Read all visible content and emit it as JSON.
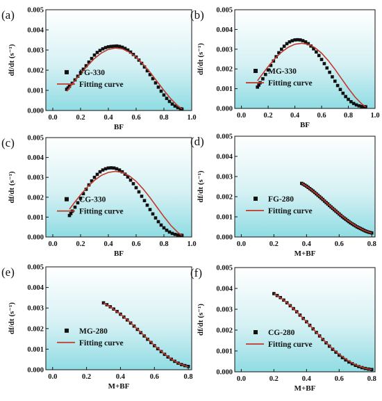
{
  "chart_data": [
    {
      "panel": "(a)",
      "type": "scatter",
      "xlabel": "BF",
      "ylabel": "df/dt (s⁻¹)",
      "xlim": [
        -0.05,
        1.0
      ],
      "ylim": [
        0,
        0.005
      ],
      "xticks": [
        "0.0",
        "0.2",
        "0.4",
        "0.6",
        "0.8",
        "1.0"
      ],
      "yticks": [
        "0.000",
        "0.001",
        "0.002",
        "0.003",
        "0.004",
        "0.005"
      ],
      "legend_location": "center-left",
      "colors": {
        "data": "#111111",
        "fit": "#c0392b"
      },
      "series": [
        {
          "name": "FG-330",
          "kind": "markers",
          "x": [
            0.1,
            0.11,
            0.12,
            0.14,
            0.16,
            0.18,
            0.2,
            0.22,
            0.24,
            0.26,
            0.28,
            0.3,
            0.32,
            0.34,
            0.36,
            0.38,
            0.4,
            0.42,
            0.44,
            0.46,
            0.48,
            0.5,
            0.52,
            0.54,
            0.56,
            0.58,
            0.6,
            0.62,
            0.64,
            0.66,
            0.68,
            0.7,
            0.72,
            0.74,
            0.76,
            0.78,
            0.8,
            0.82,
            0.84,
            0.86,
            0.88,
            0.9,
            0.92,
            0.93
          ],
          "y": [
            0.00105,
            0.00112,
            0.0012,
            0.00135,
            0.00152,
            0.0017,
            0.00188,
            0.00205,
            0.00222,
            0.0024,
            0.00258,
            0.00275,
            0.00288,
            0.00298,
            0.00306,
            0.00312,
            0.00316,
            0.00318,
            0.00319,
            0.0032,
            0.00318,
            0.00314,
            0.00308,
            0.003,
            0.0029,
            0.00278,
            0.00265,
            0.0025,
            0.00234,
            0.00216,
            0.00197,
            0.00178,
            0.00158,
            0.00137,
            0.00116,
            0.00096,
            0.00077,
            0.0006,
            0.00045,
            0.00032,
            0.00022,
            0.00014,
            9e-05,
            7e-05
          ]
        },
        {
          "name": "Fitting curve",
          "kind": "line",
          "x": [
            0.1,
            0.15,
            0.2,
            0.25,
            0.3,
            0.35,
            0.4,
            0.45,
            0.5,
            0.55,
            0.6,
            0.65,
            0.7,
            0.75,
            0.8,
            0.85,
            0.9,
            0.93
          ],
          "y": [
            0.00095,
            0.0014,
            0.00182,
            0.00222,
            0.00258,
            0.00285,
            0.00303,
            0.0031,
            0.00306,
            0.0029,
            0.00265,
            0.0023,
            0.0019,
            0.00145,
            0.001,
            0.00058,
            0.00023,
            8e-05
          ]
        }
      ]
    },
    {
      "panel": "(b)",
      "type": "scatter",
      "xlabel": "BF",
      "ylabel": "df/dt (s⁻¹)",
      "xlim": [
        -0.05,
        1.0
      ],
      "ylim": [
        0,
        0.005
      ],
      "xticks": [
        "0.0",
        "0.2",
        "0.4",
        "0.6",
        "0.8",
        "1.0"
      ],
      "yticks": [
        "0.000",
        "0.001",
        "0.002",
        "0.003",
        "0.004",
        "0.005"
      ],
      "legend_location": "center-left",
      "colors": {
        "data": "#111111",
        "fit": "#c0392b"
      },
      "series": [
        {
          "name": "MG-330",
          "kind": "markers",
          "x": [
            0.12,
            0.13,
            0.14,
            0.16,
            0.18,
            0.2,
            0.22,
            0.24,
            0.26,
            0.28,
            0.3,
            0.32,
            0.34,
            0.36,
            0.38,
            0.4,
            0.42,
            0.44,
            0.46,
            0.48,
            0.5,
            0.52,
            0.54,
            0.56,
            0.58,
            0.6,
            0.62,
            0.64,
            0.66,
            0.68,
            0.7,
            0.72,
            0.74,
            0.76,
            0.78,
            0.8,
            0.82,
            0.84,
            0.86,
            0.88,
            0.9,
            0.92,
            0.93
          ],
          "y": [
            0.00108,
            0.00118,
            0.0013,
            0.0015,
            0.00172,
            0.00195,
            0.00218,
            0.0024,
            0.00262,
            0.00282,
            0.003,
            0.00315,
            0.00328,
            0.00337,
            0.00343,
            0.00347,
            0.00348,
            0.00347,
            0.00343,
            0.00337,
            0.00328,
            0.00316,
            0.00302,
            0.00286,
            0.00268,
            0.00248,
            0.00227,
            0.00205,
            0.00183,
            0.0016,
            0.00138,
            0.00116,
            0.00096,
            0.00077,
            0.0006,
            0.00046,
            0.00034,
            0.00025,
            0.00018,
            0.00013,
            0.0001,
            9e-05,
            8e-05
          ]
        },
        {
          "name": "Fitting curve",
          "kind": "line",
          "x": [
            0.12,
            0.15,
            0.2,
            0.25,
            0.3,
            0.35,
            0.4,
            0.45,
            0.5,
            0.55,
            0.6,
            0.65,
            0.7,
            0.75,
            0.8,
            0.85,
            0.9,
            0.93
          ],
          "y": [
            0.0014,
            0.00168,
            0.00212,
            0.00252,
            0.00285,
            0.0031,
            0.00325,
            0.0033,
            0.00325,
            0.00308,
            0.0028,
            0.00242,
            0.00198,
            0.0015,
            0.00102,
            0.00058,
            0.00023,
            8e-05
          ]
        }
      ]
    },
    {
      "panel": "(c)",
      "type": "scatter",
      "xlabel": "BF",
      "ylabel": "df/dt (s⁻¹)",
      "xlim": [
        -0.05,
        1.0
      ],
      "ylim": [
        0,
        0.005
      ],
      "xticks": [
        "0.0",
        "0.2",
        "0.4",
        "0.6",
        "0.8",
        "1.0"
      ],
      "yticks": [
        "0.000",
        "0.001",
        "0.002",
        "0.003",
        "0.004",
        "0.005"
      ],
      "legend_location": "center-left",
      "colors": {
        "data": "#111111",
        "fit": "#c0392b"
      },
      "series": [
        {
          "name": "CG-330",
          "kind": "markers",
          "x": [
            0.12,
            0.13,
            0.14,
            0.16,
            0.18,
            0.2,
            0.22,
            0.24,
            0.26,
            0.28,
            0.3,
            0.32,
            0.34,
            0.36,
            0.38,
            0.4,
            0.42,
            0.44,
            0.46,
            0.48,
            0.5,
            0.52,
            0.54,
            0.56,
            0.58,
            0.6,
            0.62,
            0.64,
            0.66,
            0.68,
            0.7,
            0.72,
            0.74,
            0.76,
            0.78,
            0.8,
            0.82,
            0.84,
            0.86,
            0.88,
            0.9,
            0.92,
            0.93
          ],
          "y": [
            0.00108,
            0.00118,
            0.0013,
            0.0015,
            0.00172,
            0.00195,
            0.00218,
            0.0024,
            0.00262,
            0.00282,
            0.003,
            0.00315,
            0.00328,
            0.00337,
            0.00343,
            0.00347,
            0.00348,
            0.00347,
            0.00343,
            0.00337,
            0.00328,
            0.00316,
            0.00302,
            0.00286,
            0.00268,
            0.00248,
            0.00227,
            0.00205,
            0.00183,
            0.0016,
            0.00138,
            0.00116,
            0.00096,
            0.00077,
            0.0006,
            0.00046,
            0.00034,
            0.00025,
            0.00018,
            0.00013,
            0.0001,
            9e-05,
            8e-05
          ]
        },
        {
          "name": "Fitting curve",
          "kind": "line",
          "x": [
            0.12,
            0.15,
            0.2,
            0.25,
            0.3,
            0.35,
            0.4,
            0.45,
            0.5,
            0.55,
            0.6,
            0.65,
            0.7,
            0.75,
            0.8,
            0.85,
            0.9,
            0.93
          ],
          "y": [
            0.0014,
            0.00168,
            0.00212,
            0.00252,
            0.00285,
            0.0031,
            0.00325,
            0.0033,
            0.00325,
            0.00308,
            0.0028,
            0.00242,
            0.00198,
            0.0015,
            0.00102,
            0.00058,
            0.00023,
            8e-05
          ]
        }
      ]
    },
    {
      "panel": "(d)",
      "type": "scatter",
      "xlabel": "M+BF",
      "ylabel": "df/dt (s⁻¹)",
      "xlim": [
        -0.04,
        0.82
      ],
      "ylim": [
        0,
        0.005
      ],
      "xticks": [
        "0.0",
        "0.2",
        "0.4",
        "0.6",
        "0.8"
      ],
      "yticks": [
        "0.000",
        "0.001",
        "0.002",
        "0.003",
        "0.004",
        "0.005"
      ],
      "legend_location": "center-left",
      "colors": {
        "data": "#111111",
        "fit": "#c0392b"
      },
      "series": [
        {
          "name": "FG-280",
          "kind": "markers",
          "x": [
            0.37,
            0.38,
            0.39,
            0.4,
            0.41,
            0.42,
            0.43,
            0.44,
            0.45,
            0.46,
            0.47,
            0.48,
            0.49,
            0.5,
            0.51,
            0.52,
            0.53,
            0.54,
            0.55,
            0.56,
            0.57,
            0.58,
            0.59,
            0.6,
            0.61,
            0.62,
            0.63,
            0.64,
            0.65,
            0.66,
            0.67,
            0.68,
            0.69,
            0.7,
            0.71,
            0.72,
            0.73,
            0.74,
            0.75,
            0.76,
            0.77,
            0.78,
            0.79,
            0.8
          ],
          "y": [
            0.00266,
            0.00262,
            0.00257,
            0.00252,
            0.00246,
            0.0024,
            0.00234,
            0.00228,
            0.00221,
            0.00214,
            0.00207,
            0.002,
            0.00193,
            0.00186,
            0.00178,
            0.00171,
            0.00164,
            0.00156,
            0.00149,
            0.00142,
            0.00135,
            0.00128,
            0.00121,
            0.00114,
            0.00107,
            0.001,
            0.00094,
            0.00088,
            0.00082,
            0.00076,
            0.0007,
            0.00065,
            0.0006,
            0.00055,
            0.0005,
            0.00046,
            0.00042,
            0.00038,
            0.00034,
            0.0003,
            0.00027,
            0.00024,
            0.00022,
            0.0002
          ]
        },
        {
          "name": "Fitting curve",
          "kind": "line",
          "x": [
            0.37,
            0.4,
            0.45,
            0.5,
            0.55,
            0.6,
            0.65,
            0.7,
            0.75,
            0.8
          ],
          "y": [
            0.00267,
            0.00252,
            0.00222,
            0.00187,
            0.0015,
            0.00115,
            0.00083,
            0.00056,
            0.00034,
            0.00019
          ]
        }
      ]
    },
    {
      "panel": "(e)",
      "type": "scatter",
      "xlabel": "M+BF",
      "ylabel": "df/dt (s⁻¹)",
      "xlim": [
        -0.04,
        0.82
      ],
      "ylim": [
        0,
        0.005
      ],
      "xticks": [
        "0.0",
        "0.2",
        "0.4",
        "0.6",
        "0.8"
      ],
      "yticks": [
        "0.000",
        "0.001",
        "0.002",
        "0.003",
        "0.004",
        "0.005"
      ],
      "legend_location": "center-left",
      "colors": {
        "data": "#111111",
        "fit": "#c0392b"
      },
      "series": [
        {
          "name": "MG-280",
          "kind": "markers",
          "x": [
            0.3,
            0.32,
            0.34,
            0.36,
            0.38,
            0.4,
            0.42,
            0.44,
            0.46,
            0.48,
            0.5,
            0.52,
            0.54,
            0.56,
            0.58,
            0.6,
            0.62,
            0.64,
            0.66,
            0.68,
            0.7,
            0.72,
            0.74,
            0.76,
            0.78,
            0.8
          ],
          "y": [
            0.00325,
            0.00316,
            0.00306,
            0.00295,
            0.00283,
            0.0027,
            0.00256,
            0.00242,
            0.00227,
            0.00212,
            0.00196,
            0.0018,
            0.00164,
            0.00148,
            0.00132,
            0.00117,
            0.00102,
            0.00088,
            0.00075,
            0.00062,
            0.00051,
            0.00041,
            0.00032,
            0.00025,
            0.0002,
            0.00016
          ]
        },
        {
          "name": "Fitting curve",
          "kind": "line",
          "x": [
            0.3,
            0.35,
            0.4,
            0.45,
            0.5,
            0.55,
            0.6,
            0.65,
            0.7,
            0.75,
            0.8
          ],
          "y": [
            0.00325,
            0.003,
            0.0027,
            0.00236,
            0.00198,
            0.00158,
            0.00119,
            0.00083,
            0.00052,
            0.00028,
            0.00014
          ]
        }
      ]
    },
    {
      "panel": "(f)",
      "type": "scatter",
      "xlabel": "M+BF",
      "ylabel": "df/dt (s⁻¹)",
      "xlim": [
        -0.04,
        0.82
      ],
      "ylim": [
        0,
        0.005
      ],
      "xticks": [
        "0.0",
        "0.2",
        "0.4",
        "0.6",
        "0.8"
      ],
      "yticks": [
        "0.000",
        "0.001",
        "0.002",
        "0.003",
        "0.004",
        "0.005"
      ],
      "legend_location": "center-left",
      "colors": {
        "data": "#111111",
        "fit": "#c0392b"
      },
      "series": [
        {
          "name": "CG-280",
          "kind": "markers",
          "x": [
            0.2,
            0.22,
            0.24,
            0.26,
            0.28,
            0.3,
            0.32,
            0.34,
            0.36,
            0.38,
            0.4,
            0.42,
            0.44,
            0.46,
            0.48,
            0.5,
            0.52,
            0.54,
            0.56,
            0.58,
            0.6,
            0.62,
            0.64,
            0.66,
            0.68,
            0.7,
            0.72,
            0.74,
            0.76,
            0.78,
            0.8
          ],
          "y": [
            0.00375,
            0.00366,
            0.00356,
            0.00344,
            0.00331,
            0.00317,
            0.00303,
            0.00288,
            0.00272,
            0.00256,
            0.0024,
            0.00223,
            0.00206,
            0.00189,
            0.00172,
            0.00155,
            0.00139,
            0.00123,
            0.00108,
            0.00094,
            0.0008,
            0.00068,
            0.00057,
            0.00047,
            0.00039,
            0.00031,
            0.00025,
            0.0002,
            0.00016,
            0.00013,
            0.00011
          ]
        },
        {
          "name": "Fitting curve",
          "kind": "line",
          "x": [
            0.2,
            0.25,
            0.3,
            0.35,
            0.4,
            0.45,
            0.5,
            0.55,
            0.6,
            0.65,
            0.7,
            0.75,
            0.8
          ],
          "y": [
            0.00375,
            0.0035,
            0.00318,
            0.0028,
            0.0024,
            0.00198,
            0.00157,
            0.00118,
            0.00084,
            0.00056,
            0.00034,
            0.00019,
            0.0001
          ]
        }
      ]
    }
  ]
}
